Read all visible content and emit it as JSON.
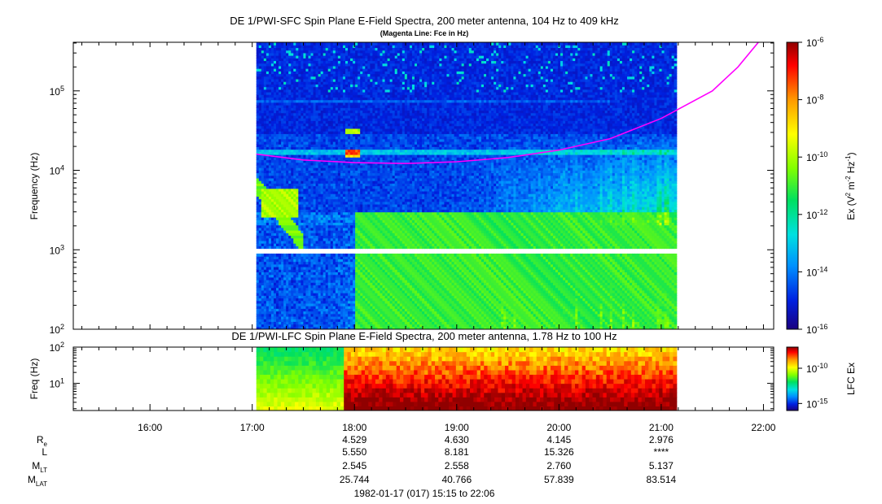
{
  "chart_data": [
    {
      "type": "heatmap",
      "title": "DE 1/PWI-SFC  Spin Plane E-Field Spectra, 200 meter antenna, 104 Hz to 409 kHz",
      "subtitle": "(Magenta Line: Fce in Hz)",
      "ylabel": "Frequency (Hz)",
      "y_scale": "log",
      "ylim": [
        100,
        409000
      ],
      "y_ticks": [
        {
          "value": 100,
          "base": "10",
          "exp": "2"
        },
        {
          "value": 1000,
          "base": "10",
          "exp": "3"
        },
        {
          "value": 10000,
          "base": "10",
          "exp": "4"
        },
        {
          "value": 100000,
          "base": "10",
          "exp": "5"
        }
      ],
      "x_range_hours": [
        15.25,
        22.1
      ],
      "data_coverage_hours": [
        17.04,
        21.15
      ],
      "data_gap_hz": [
        900,
        1050
      ],
      "colorbar": {
        "label_main": "Ex (V",
        "label_rest": " m",
        "label_tail": " Hz",
        "label_close": ")",
        "sup_2a": "2",
        "sup_2b": "-2",
        "sup_m1": "-1",
        "scale": "log",
        "range": [
          1e-16,
          1e-06
        ],
        "ticks": [
          {
            "value": -6,
            "base": "10",
            "exp": "-6"
          },
          {
            "value": -8,
            "base": "10",
            "exp": "-8"
          },
          {
            "value": -10,
            "base": "10",
            "exp": "-10"
          },
          {
            "value": -12,
            "base": "10",
            "exp": "-12"
          },
          {
            "value": -14,
            "base": "10",
            "exp": "-14"
          },
          {
            "value": -16,
            "base": "10",
            "exp": "-16"
          }
        ]
      },
      "fce_line": {
        "name": "Fce",
        "color": "#ff00ff",
        "points": [
          [
            17.04,
            16000
          ],
          [
            17.5,
            13500
          ],
          [
            18.0,
            12500
          ],
          [
            18.5,
            12200
          ],
          [
            19.0,
            12800
          ],
          [
            19.5,
            14500
          ],
          [
            20.0,
            18000
          ],
          [
            20.5,
            25000
          ],
          [
            21.0,
            45000
          ],
          [
            21.5,
            100000
          ],
          [
            21.75,
            200000
          ],
          [
            21.95,
            409000
          ]
        ]
      },
      "features": [
        {
          "type": "hiss",
          "t": [
            17.1,
            17.45
          ],
          "f": [
            2500,
            6000
          ],
          "level": -10.5
        },
        {
          "type": "emission",
          "t": [
            17.9,
            18.05
          ],
          "f": [
            15000,
            18000
          ],
          "level": -9.5
        },
        {
          "type": "emission",
          "t": [
            17.9,
            18.05
          ],
          "f": [
            28000,
            33000
          ],
          "level": -10.5
        },
        {
          "type": "broadband",
          "t": [
            18.0,
            21.15
          ],
          "f": [
            100,
            3000
          ],
          "level": -11.5
        }
      ]
    },
    {
      "type": "heatmap",
      "title": "DE 1/PWI-LFC  Spin Plane E-Field Spectra, 200 meter antenna, 1.78 Hz to 100 Hz",
      "ylabel": "Freq (Hz)",
      "y_scale": "log",
      "ylim": [
        1.78,
        100
      ],
      "y_ticks": [
        {
          "value": 10,
          "base": "10",
          "exp": "1"
        },
        {
          "value": 100,
          "base": "10",
          "exp": "2"
        }
      ],
      "data_coverage_hours": [
        17.04,
        21.15
      ],
      "colorbar": {
        "label": "LFC Ex",
        "scale": "log",
        "range": [
          1e-16,
          1e-07
        ],
        "ticks": [
          {
            "value": -10,
            "base": "10",
            "exp": "-10"
          },
          {
            "value": -15,
            "base": "10",
            "exp": "-15"
          }
        ]
      }
    }
  ],
  "x_axis": {
    "ticks": [
      {
        "hour": 16,
        "label": "16:00"
      },
      {
        "hour": 17,
        "label": "17:00"
      },
      {
        "hour": 18,
        "label": "18:00"
      },
      {
        "hour": 19,
        "label": "19:00"
      },
      {
        "hour": 20,
        "label": "20:00"
      },
      {
        "hour": 21,
        "label": "21:00"
      },
      {
        "hour": 22,
        "label": "22:00"
      }
    ]
  },
  "ephemeris": {
    "rows": [
      {
        "label": "R",
        "sub": "e",
        "values": [
          "4.529",
          "4.630",
          "4.145",
          "2.976"
        ]
      },
      {
        "label": "L",
        "sub": "",
        "values": [
          "5.550",
          "8.181",
          "15.326",
          "****"
        ]
      },
      {
        "label": "M",
        "sub": "LT",
        "values": [
          "2.545",
          "2.558",
          "2.760",
          "5.137"
        ]
      },
      {
        "label": "M",
        "sub": "LAT",
        "values": [
          "25.744",
          "40.766",
          "57.839",
          "83.514"
        ]
      }
    ],
    "hours": [
      18,
      19,
      20,
      21
    ]
  },
  "time_range": "1982-01-17 (017) 15:15 to 22:06",
  "colors": {
    "fce": "#ff00ff",
    "background_spectra": "#0022cc",
    "colormap": [
      "#1a0080",
      "#0020e0",
      "#0090ff",
      "#00e0e0",
      "#00e060",
      "#80ff00",
      "#ffff00",
      "#ff9900",
      "#ff0000",
      "#900000"
    ]
  }
}
